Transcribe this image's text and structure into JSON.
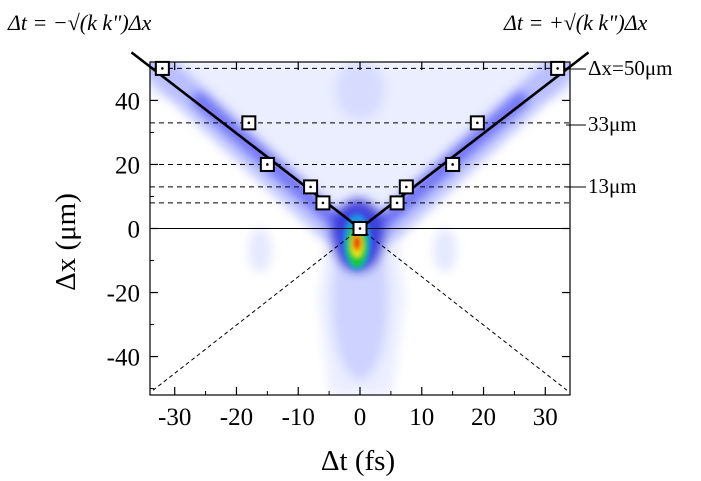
{
  "chart_data": {
    "type": "scatter",
    "title": "",
    "xlabel": "Δt (fs)",
    "ylabel": "Δx (μm)",
    "xlim": [
      -34,
      34
    ],
    "ylim": [
      -52,
      52
    ],
    "x_ticks": [
      -30,
      -20,
      -10,
      0,
      10,
      20,
      30
    ],
    "x_tick_labels": [
      "-30",
      "-20",
      "-10",
      "0",
      "10",
      "20",
      "30"
    ],
    "y_ticks": [
      -40,
      -20,
      0,
      20,
      40
    ],
    "y_tick_labels": [
      "-40",
      "-20",
      "0",
      "20",
      "40"
    ],
    "grid": false,
    "background": "heatmap (blue → green → red, peak at Δt=0, Δx=0)",
    "colormap": [
      "#ffffff",
      "#e4e8ff",
      "#9fa8ff",
      "#3b3bf0",
      "#1f8ee8",
      "#17c83a",
      "#f0f000",
      "#ee2200"
    ],
    "series": [
      {
        "marker": "open-square",
        "points": [
          {
            "x": -32,
            "y": 50
          },
          {
            "x": -18,
            "y": 33
          },
          {
            "x": -15,
            "y": 20
          },
          {
            "x": -8,
            "y": 13
          },
          {
            "x": -6,
            "y": 8
          },
          {
            "x": 0,
            "y": 0
          },
          {
            "x": 6,
            "y": 8
          },
          {
            "x": 7.5,
            "y": 13
          },
          {
            "x": 15,
            "y": 20
          },
          {
            "x": 19,
            "y": 33
          },
          {
            "x": 32,
            "y": 50
          }
        ]
      }
    ],
    "fit_lines": [
      {
        "x": [
          0,
          -37
        ],
        "y": [
          0,
          55
        ]
      },
      {
        "x": [
          0,
          37
        ],
        "y": [
          0,
          55
        ]
      }
    ],
    "reference_lines": {
      "horizontal_dashed_y": [
        50,
        33,
        20,
        13,
        8
      ],
      "horizontal_solid_y": 0,
      "diagonal_dashed": [
        {
          "x": [
            0,
            -33.5
          ],
          "y": [
            0,
            -50.5
          ]
        },
        {
          "x": [
            0,
            33.5
          ],
          "y": [
            0,
            -50.5
          ]
        }
      ]
    },
    "annotations": {
      "left_formula": "Δt = −√(k k\")Δx",
      "right_formula": "Δt = +√(k k\")Δx",
      "label_50": "Δx=50μm",
      "label_33": "33μm",
      "label_13": "13μm"
    }
  }
}
